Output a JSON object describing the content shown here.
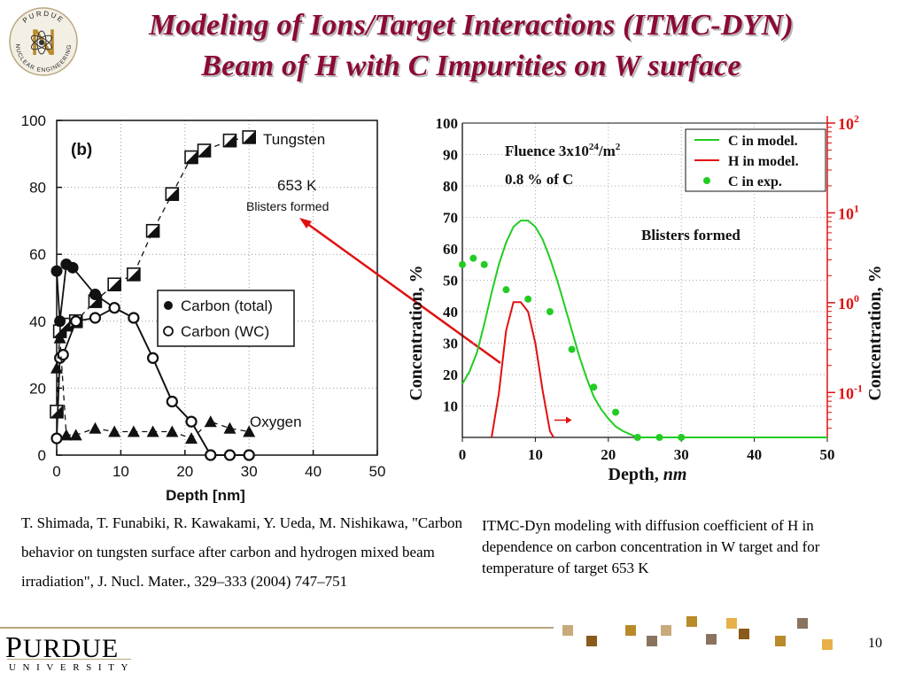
{
  "slide": {
    "title_line1": "Modeling of Ions/Target Interactions (ITMC-DYN)",
    "title_line2": "Beam of H with C Impurities on W surface",
    "page_number": "10",
    "title_color": "#8b0a37"
  },
  "logo": {
    "ring_text_top": "PURDUE",
    "ring_text_bottom": "NUCLEAR ENGINEERING",
    "letter": "N",
    "icon": "atom-icon"
  },
  "caption_left": "T. Shimada, T. Funabiki, R. Kawakami, Y. Ueda, M. Nishikawa, \"Carbon behavior on tungsten surface after carbon and hydrogen mixed beam irradiation\", J. Nucl. Mater., 329–333 (2004) 747–751",
  "caption_right": "ITMC-Dyn modeling with diffusion coefficient of H in dependence on carbon concentration in W target and for temperature of target 653 K",
  "footer": {
    "brand_first": "P",
    "brand_rest": "URDUE",
    "brand_sub": "UNIVERSITY",
    "accent": "#b7a47a",
    "squares": [
      "#c8ab7a",
      "#8a5a1b",
      "#b98a2a",
      "#8a7460",
      "#c8ab7a",
      "#b98a2a",
      "#8a7460",
      "#e8b04a",
      "#8a5a1b",
      "#b98a2a",
      "#8a7460",
      "#e8b04a"
    ]
  },
  "chart_data": [
    {
      "type": "scatter",
      "panel_label": "(b)",
      "xlabel": "Depth [nm]",
      "ylabel": "",
      "xlim": [
        0,
        50
      ],
      "ylim": [
        0,
        100
      ],
      "x_ticks": [
        0,
        10,
        20,
        30,
        40,
        50
      ],
      "y_ticks": [
        0,
        20,
        40,
        60,
        80,
        100
      ],
      "grid": "dotted",
      "annotations": [
        "Tungsten",
        "653 K",
        "Blisters formed",
        "Oxygen"
      ],
      "legend": {
        "position": "center-right",
        "entries": [
          "Carbon (total)",
          "Carbon (WC)"
        ]
      },
      "series": [
        {
          "name": "Tungsten",
          "marker": "half-filled-square",
          "line": "dashed",
          "x": [
            0,
            0.5,
            1.5,
            3,
            6,
            9,
            12,
            15,
            18,
            21,
            23,
            27,
            30
          ],
          "y": [
            13,
            37,
            39,
            40,
            46,
            51,
            54,
            67,
            78,
            89,
            91,
            94,
            95
          ]
        },
        {
          "name": "Carbon (total)",
          "marker": "filled-circle",
          "line": "solid",
          "x": [
            0,
            0.5,
            1.5,
            2.5,
            6,
            9,
            12,
            15,
            18,
            21,
            24,
            27,
            30
          ],
          "y": [
            55,
            40,
            57,
            56,
            48,
            44,
            41,
            29,
            16,
            10,
            0,
            0,
            0
          ]
        },
        {
          "name": "Carbon (WC)",
          "marker": "open-circle",
          "line": "solid",
          "x": [
            0,
            0.5,
            1,
            3,
            6,
            9,
            12,
            15,
            18,
            21,
            24,
            27,
            30
          ],
          "y": [
            5,
            29,
            30,
            40,
            41,
            44,
            41,
            29,
            16,
            10,
            0,
            0,
            0
          ]
        },
        {
          "name": "Oxygen",
          "marker": "filled-triangle",
          "line": "dashed",
          "x": [
            0,
            0.5,
            1.5,
            3,
            6,
            9,
            12,
            15,
            18,
            21,
            24,
            27,
            30
          ],
          "y": [
            26,
            35,
            6,
            6,
            8,
            7,
            7,
            7,
            7,
            5,
            10,
            8,
            7
          ]
        }
      ]
    },
    {
      "type": "line",
      "annotation_fluence": "Fluence 3x10",
      "annotation_fluence_exp": "24",
      "annotation_fluence_unit": "/m",
      "annotation_fluence_unit_exp": "2",
      "annotation_percent": "0.8 % of C",
      "annotation_blisters": "Blisters formed",
      "xlabel": "Depth, ",
      "xlabel_unit": "nm",
      "ylabel_left": "Concentration, %",
      "ylabel_right": "Concentration, %",
      "xlim": [
        0,
        50
      ],
      "ylim_left": [
        0,
        100
      ],
      "ylim_right_log": [
        -1.5,
        2
      ],
      "x_ticks": [
        0,
        10,
        20,
        30,
        40,
        50
      ],
      "y_ticks_left": [
        10,
        20,
        30,
        40,
        50,
        60,
        70,
        80,
        90,
        100
      ],
      "y_ticks_right": [
        "10",
        "10",
        "10",
        "10"
      ],
      "y_ticks_right_exp": [
        "-1",
        "0",
        "1",
        "2"
      ],
      "y_ticks_right_values": [
        -1,
        0,
        1,
        2
      ],
      "right_axis_color": "#e01010",
      "grid": "dotted",
      "legend": {
        "position": "top-right",
        "entries": [
          "C in model.",
          "H in model.",
          "C in exp."
        ]
      },
      "series": [
        {
          "name": "C in model.",
          "color": "#22cc22",
          "style": "line",
          "x": [
            0,
            1,
            2,
            3,
            4,
            5,
            6,
            7,
            8,
            9,
            10,
            11,
            12,
            13,
            14,
            15,
            16,
            17,
            18,
            19,
            20,
            21,
            22,
            23,
            24,
            25,
            30,
            40,
            50
          ],
          "y": [
            17,
            21,
            27,
            36,
            46,
            55,
            62,
            67,
            69,
            69,
            67,
            63,
            57,
            50,
            42,
            34,
            26,
            19,
            13,
            9,
            6,
            3.5,
            2,
            1,
            0,
            0,
            0,
            0,
            0
          ]
        },
        {
          "name": "H in model.",
          "color": "#e01010",
          "style": "line",
          "axis": "left",
          "x": [
            4,
            5,
            6,
            7,
            8,
            9,
            10,
            11,
            12,
            12.5
          ],
          "y": [
            0,
            14,
            34,
            43,
            43,
            40,
            30,
            15,
            2,
            0
          ]
        },
        {
          "name": "C in exp.",
          "color": "#22cc22",
          "style": "markers",
          "x": [
            0,
            1.5,
            3,
            6,
            9,
            12,
            15,
            18,
            21,
            24,
            27,
            30
          ],
          "y": [
            55,
            57,
            55,
            47,
            44,
            40,
            28,
            16,
            8,
            0,
            0,
            0
          ]
        }
      ]
    }
  ]
}
